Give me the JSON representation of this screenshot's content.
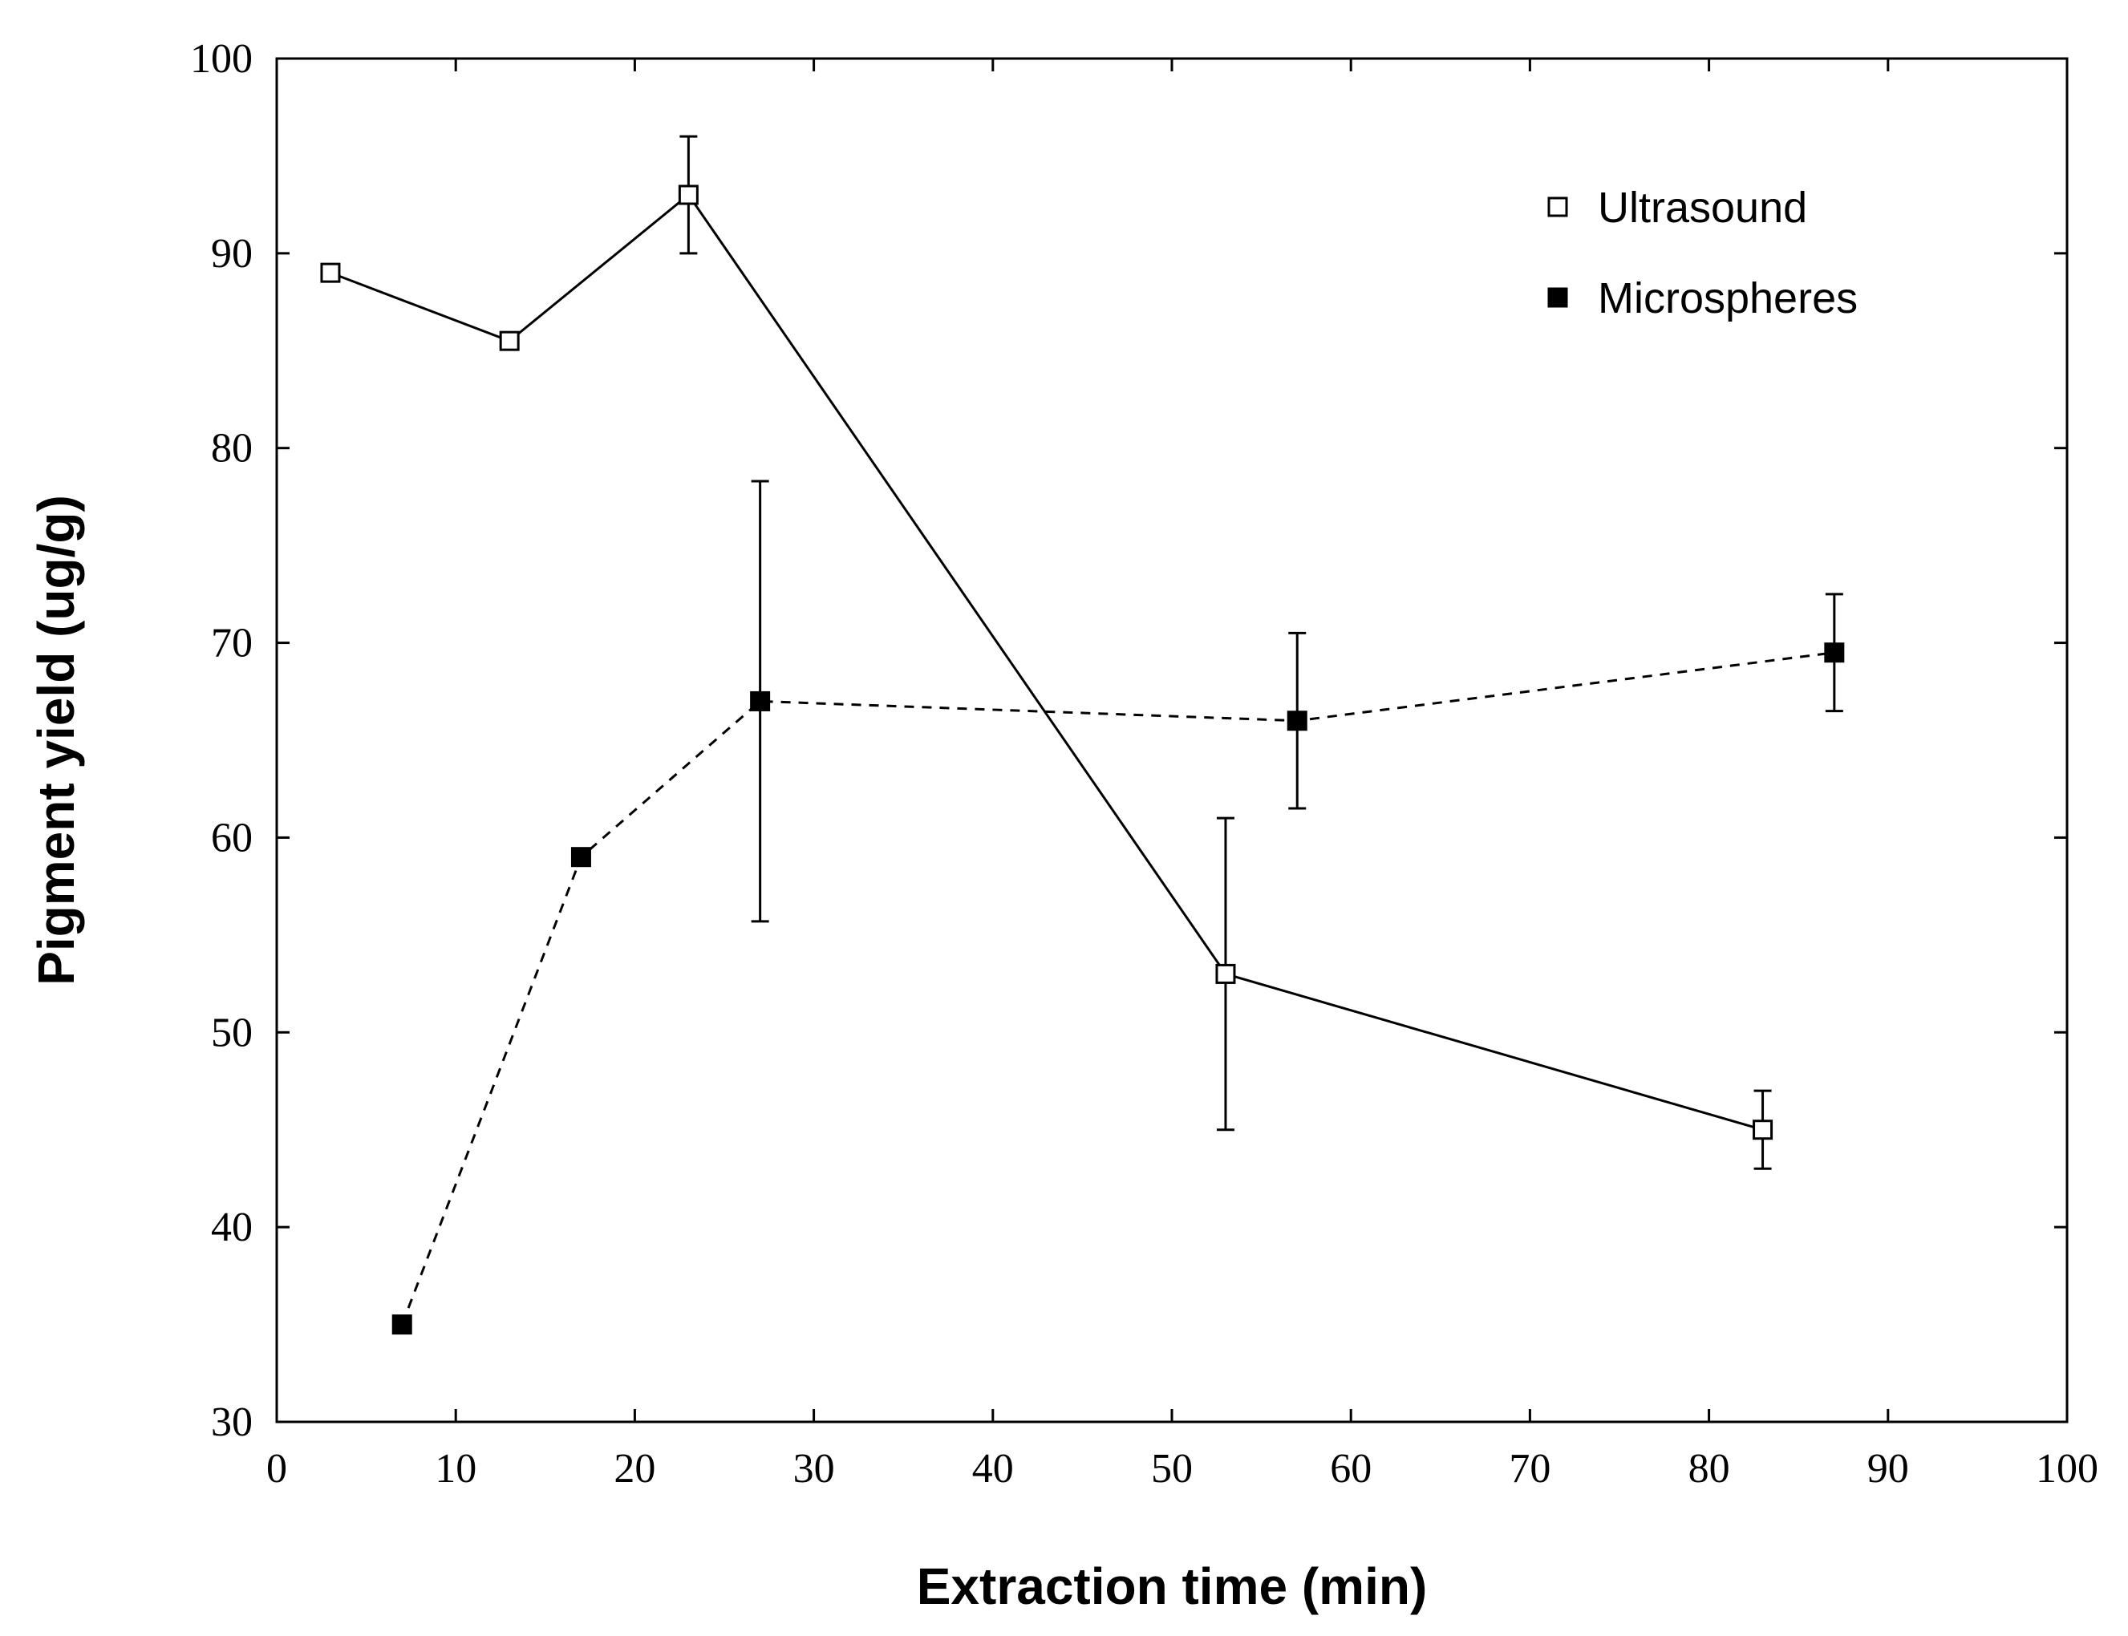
{
  "chart_data": {
    "type": "line",
    "title": "",
    "xlabel": "Extraction time (min)",
    "ylabel": "Pigment yield (ug/g)",
    "xlim": [
      0,
      100
    ],
    "ylim": [
      30,
      100
    ],
    "xticks": [
      0,
      10,
      20,
      30,
      40,
      50,
      60,
      70,
      80,
      90,
      100
    ],
    "yticks": [
      30,
      40,
      50,
      60,
      70,
      80,
      90,
      100
    ],
    "grid": false,
    "legend": "top-right",
    "series": [
      {
        "name": "Ultrasound",
        "marker": "open-square",
        "line": "solid",
        "color": "#000000",
        "x": [
          3,
          13,
          23,
          53,
          83
        ],
        "y": [
          89,
          85.5,
          93,
          53,
          45
        ],
        "err": [
          0,
          0,
          3,
          8,
          2
        ]
      },
      {
        "name": "Microspheres",
        "marker": "filled-square",
        "line": "dashed",
        "color": "#000000",
        "x": [
          7,
          17,
          27,
          57,
          87
        ],
        "y": [
          35,
          59,
          67,
          66,
          69.5
        ],
        "err": [
          0,
          0,
          11.3,
          4.5,
          3
        ]
      }
    ]
  }
}
